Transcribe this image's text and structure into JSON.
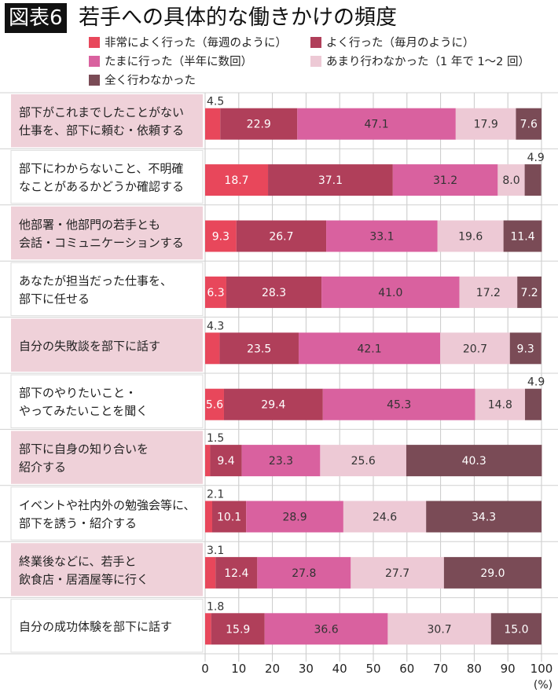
{
  "header": {
    "badge": "図表6",
    "title": "若手への具体的な働きかけの頻度"
  },
  "chart_data": {
    "type": "bar",
    "orientation": "horizontal",
    "stacked": true,
    "title": "若手への具体的な働きかけの頻度",
    "xlim": [
      0,
      100
    ],
    "xticks": [
      0,
      10,
      20,
      30,
      40,
      50,
      60,
      70,
      80,
      90,
      100
    ],
    "xunit": "(%)",
    "grid": true,
    "legend_position": "top",
    "categories": [
      "部下がこれまでしたことがない\n仕事を、部下に頼む・依頼する",
      "部下にわからないこと、不明確\nなことがあるかどうか確認する",
      "他部署・他部門の若手とも\n会話・コミュニケーションする",
      "あなたが担当だった仕事を、\n部下に任せる",
      "自分の失敗談を部下に話す",
      "部下のやりたいこと・\nやってみたいことを聞く",
      "部下に自身の知り合いを\n紹介する",
      "イベントや社内外の勉強会等に、\n部下を誘う・紹介する",
      "終業後などに、若手と\n飲食店・居酒屋等に行く",
      "自分の成功体験を部下に話す"
    ],
    "series": [
      {
        "name": "非常によく行った（毎週のように）",
        "color": "#e8475b",
        "values": [
          4.5,
          18.7,
          9.3,
          6.3,
          4.3,
          5.6,
          1.5,
          2.1,
          3.1,
          1.8
        ]
      },
      {
        "name": "よく行った（毎月のように）",
        "color": "#b03f5a",
        "values": [
          22.9,
          37.1,
          26.7,
          28.3,
          23.5,
          29.4,
          9.4,
          10.1,
          12.4,
          15.9
        ]
      },
      {
        "name": "たまに行った（半年に数回）",
        "color": "#d9619f",
        "values": [
          47.1,
          31.2,
          33.1,
          41.0,
          42.1,
          45.3,
          23.3,
          28.9,
          27.8,
          36.6
        ]
      },
      {
        "name": "あまり行わなかった（1 年で 1～2 回）",
        "color": "#edc9d5",
        "values": [
          17.9,
          8.0,
          19.6,
          17.2,
          20.7,
          14.8,
          25.6,
          24.6,
          27.7,
          30.7
        ]
      },
      {
        "name": "全く行わなかった",
        "color": "#7a4b56",
        "values": [
          7.6,
          4.9,
          11.4,
          7.2,
          9.3,
          4.9,
          40.3,
          34.3,
          29.0,
          15.0
        ]
      }
    ]
  }
}
